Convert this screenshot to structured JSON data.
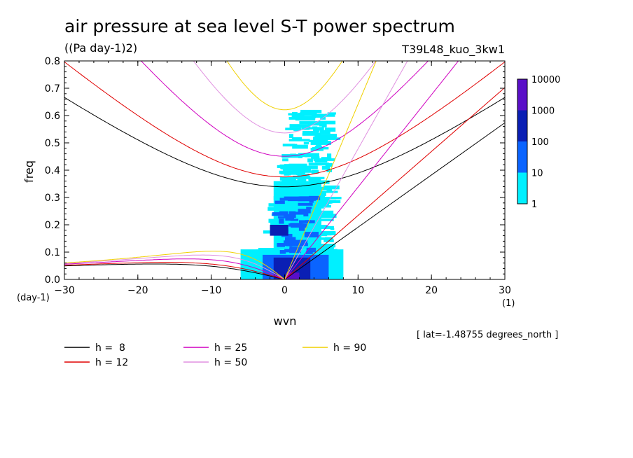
{
  "chart_data": {
    "type": "heatmap",
    "title": "air pressure at sea level S-T power spectrum",
    "units": "((Pa day-1)2)",
    "experiment": "T39L48_kuo_3kw1",
    "xlabel": "wvn",
    "ylabel": "freq",
    "x_unit": "(1)",
    "y_unit": "(day-1)",
    "xlim": [
      -30,
      30
    ],
    "ylim": [
      0,
      0.8
    ],
    "xticks": [
      "-30",
      "-20",
      "-10",
      "0",
      "10",
      "20",
      "30"
    ],
    "yticks": [
      "0.0",
      "0.1",
      "0.2",
      "0.3",
      "0.4",
      "0.5",
      "0.6",
      "0.7",
      "0.8"
    ],
    "annotation": "[ lat=-1.48755 degrees_north ]",
    "colorbar": {
      "labels": [
        "10000",
        "1000",
        "100",
        "10",
        "1"
      ],
      "colors": [
        "#5a0fc8",
        "#0a1fb4",
        "#0a64ff",
        "#00f0ff"
      ]
    },
    "dispersion_curves": [
      {
        "label": "h =  8",
        "color": "#000000"
      },
      {
        "label": "h = 12",
        "color": "#e00000"
      },
      {
        "label": "h = 25",
        "color": "#d000c0"
      },
      {
        "label": "h = 50",
        "color": "#e090e0"
      },
      {
        "label": "h = 90",
        "color": "#f0d000"
      }
    ],
    "spectrum_regions": [
      {
        "level": "1-10",
        "x": [
          -6,
          8
        ],
        "y": [
          0,
          0.6
        ]
      },
      {
        "level": "10-100",
        "x": [
          -3,
          6
        ],
        "y": [
          0,
          0.3
        ]
      },
      {
        "level": "100-1000",
        "x": [
          -2,
          4
        ],
        "y": [
          0,
          0.1
        ]
      },
      {
        "level": "1000-10000",
        "x": [
          0,
          2
        ],
        "y": [
          0,
          0.03
        ]
      }
    ]
  }
}
